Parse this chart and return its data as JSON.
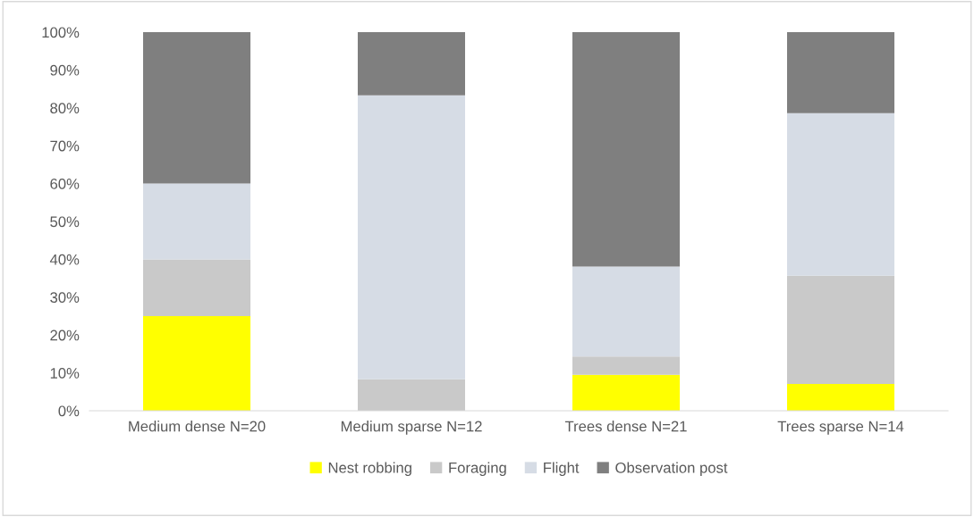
{
  "chart_data": {
    "type": "bar",
    "stacked": true,
    "categories": [
      "Medium dense N=20",
      "Medium sparse N=12",
      "Trees dense N=21",
      "Trees sparse N=14"
    ],
    "series": [
      {
        "name": "Nest robbing",
        "color": "#ffff00",
        "values": [
          25,
          0,
          9.5,
          7.1
        ]
      },
      {
        "name": "Foraging",
        "color": "#c9c9c9",
        "values": [
          15,
          8.3,
          4.8,
          28.6
        ]
      },
      {
        "name": "Flight",
        "color": "#d6dce5",
        "values": [
          20,
          75,
          23.8,
          42.9
        ]
      },
      {
        "name": "Observation post",
        "color": "#7f7f7f",
        "values": [
          40,
          16.7,
          61.9,
          21.4
        ]
      }
    ],
    "ylim": [
      0,
      100
    ],
    "yticks": [
      {
        "value": 0,
        "label": "0%"
      },
      {
        "value": 10,
        "label": "10%"
      },
      {
        "value": 20,
        "label": "20%"
      },
      {
        "value": 30,
        "label": "30%"
      },
      {
        "value": 40,
        "label": "40%"
      },
      {
        "value": 50,
        "label": "50%"
      },
      {
        "value": 60,
        "label": "60%"
      },
      {
        "value": 70,
        "label": "70%"
      },
      {
        "value": 80,
        "label": "80%"
      },
      {
        "value": 90,
        "label": "90%"
      },
      {
        "value": 100,
        "label": "100%"
      }
    ],
    "grid": false,
    "legend": "bottom"
  }
}
